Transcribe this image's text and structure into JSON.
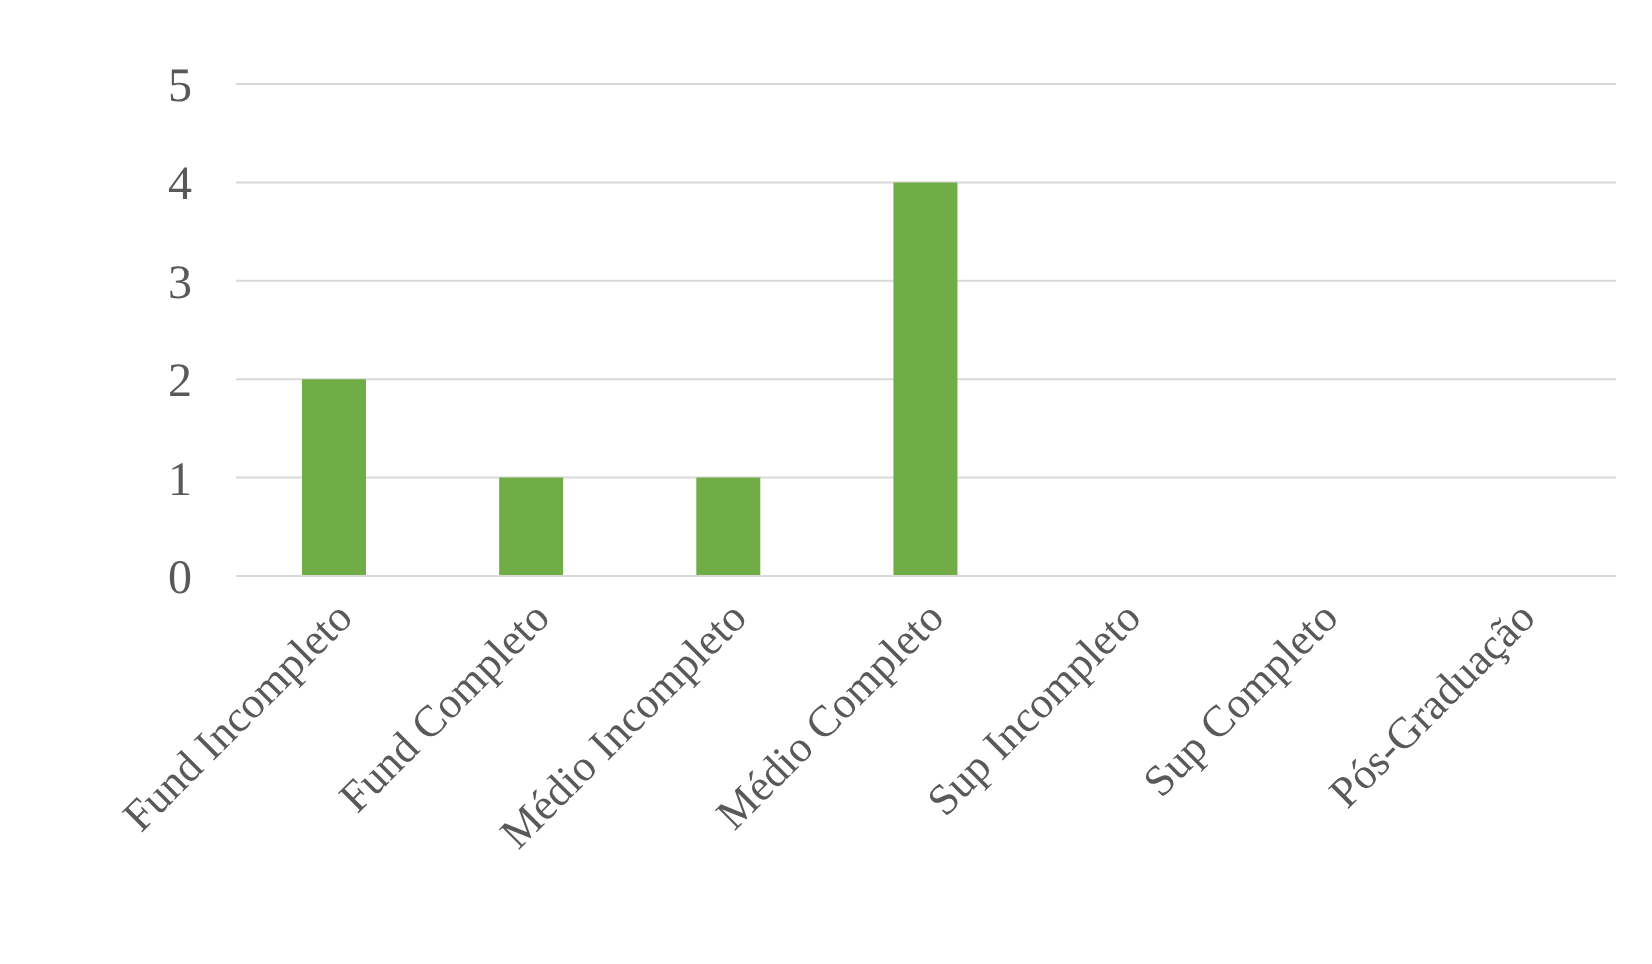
{
  "chart_data": {
    "type": "bar",
    "categories": [
      "Fund Incompleto",
      "Fund Completo",
      "Médio Incompleto",
      "Médio Completo",
      "Sup Incompleto",
      "Sup Completo",
      "Pós-Graduação"
    ],
    "values": [
      2,
      1,
      1,
      4,
      0,
      0,
      0
    ],
    "color": "#70ad47",
    "ylim": [
      0,
      5
    ],
    "yticks": [
      0,
      1,
      2,
      3,
      4,
      5
    ],
    "grid": "y",
    "legend": false
  }
}
